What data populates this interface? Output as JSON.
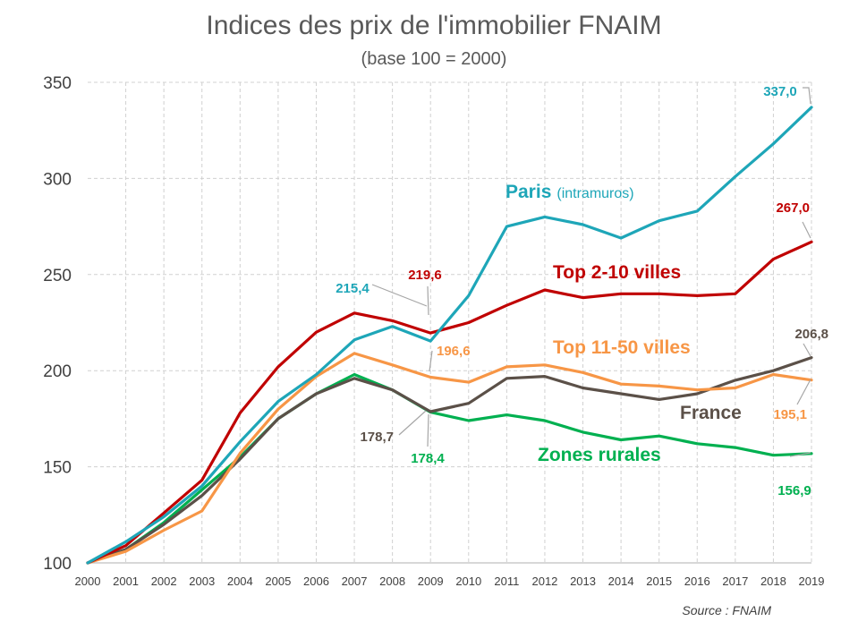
{
  "chart_data": {
    "type": "line",
    "title": "Indices des prix de l'immobilier FNAIM",
    "subtitle": "(base 100 = 2000)",
    "source": "Source :  FNAIM",
    "x": [
      "2000",
      "2001",
      "2002",
      "2003",
      "2004",
      "2005",
      "2006",
      "2007",
      "2008",
      "2009",
      "2010",
      "2011",
      "2012",
      "2013",
      "2014",
      "2015",
      "2016",
      "2017",
      "2018",
      "2019"
    ],
    "ylim": [
      100,
      350
    ],
    "yticks": [
      "100",
      "150",
      "200",
      "250",
      "300",
      "350"
    ],
    "grid": true,
    "series": [
      {
        "key": "paris",
        "name": "Paris",
        "name_sub": "(intramuros)",
        "color": "#1ea6b8",
        "values": [
          100,
          111,
          124,
          140,
          163,
          184,
          198,
          216,
          223,
          215.4,
          239,
          275,
          280,
          276,
          269,
          278,
          283,
          301,
          318,
          337.0
        ]
      },
      {
        "key": "top210",
        "name": "Top 2-10 villes",
        "name_sub": "",
        "color": "#c00000",
        "values": [
          100,
          109,
          126,
          143,
          178,
          202,
          220,
          230,
          226,
          219.6,
          225,
          234,
          242,
          238,
          240,
          240,
          239,
          240,
          258,
          267.0
        ]
      },
      {
        "key": "top1150",
        "name": "Top 11-50 villes",
        "name_sub": "",
        "color": "#f79646",
        "values": [
          100,
          106,
          117,
          127,
          157,
          180,
          197,
          209,
          203,
          196.6,
          194,
          202,
          203,
          199,
          193,
          192,
          190,
          191,
          198,
          195.1
        ]
      },
      {
        "key": "france",
        "name": "France",
        "name_sub": "",
        "color": "#5b5048",
        "values": [
          100,
          107,
          120,
          135,
          154,
          175,
          188,
          196,
          190,
          178.7,
          183,
          196,
          197,
          191,
          188,
          185,
          188,
          195,
          200,
          206.8
        ]
      },
      {
        "key": "rural",
        "name": "Zones rurales",
        "name_sub": "",
        "color": "#00b050",
        "values": [
          100,
          107,
          121,
          138,
          155,
          175,
          188,
          198,
          190,
          178.4,
          174,
          177,
          174,
          168,
          164,
          166,
          162,
          160,
          156,
          156.9
        ]
      }
    ],
    "data_labels": [
      {
        "series": "paris",
        "text": "337,0"
      },
      {
        "series": "paris",
        "text": "215,4"
      },
      {
        "series": "top210",
        "text": "267,0"
      },
      {
        "series": "top210",
        "text": "219,6"
      },
      {
        "series": "top1150",
        "text": "196,6"
      },
      {
        "series": "top1150",
        "text": "195,1"
      },
      {
        "series": "france",
        "text": "206,8"
      },
      {
        "series": "france",
        "text": "178,7"
      },
      {
        "series": "rural",
        "text": "178,4"
      },
      {
        "series": "rural",
        "text": "156,9"
      }
    ]
  }
}
